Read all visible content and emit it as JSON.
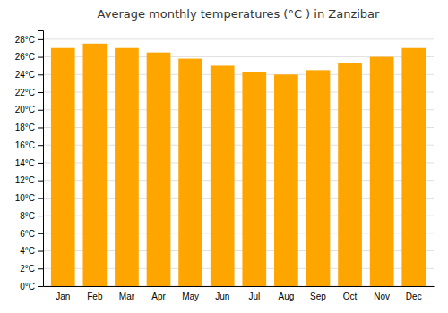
{
  "chart_data": {
    "type": "bar",
    "title": "Average monthly temperatures (°C ) in Zanzibar",
    "categories": [
      "Jan",
      "Feb",
      "Mar",
      "Apr",
      "May",
      "Jun",
      "Jul",
      "Aug",
      "Sep",
      "Oct",
      "Nov",
      "Dec"
    ],
    "values": [
      27.0,
      27.5,
      27.0,
      26.5,
      25.8,
      25.0,
      24.3,
      24.0,
      24.5,
      25.3,
      26.0,
      27.0
    ],
    "color": "#FFA500",
    "ylim": [
      0,
      29
    ],
    "yticks": [
      {
        "value": 0,
        "label": "0°C"
      },
      {
        "value": 2,
        "label": "2°C"
      },
      {
        "value": 4,
        "label": "4°C"
      },
      {
        "value": 6,
        "label": "6°C"
      },
      {
        "value": 8,
        "label": "8°C"
      },
      {
        "value": 10,
        "label": "10°C"
      },
      {
        "value": 12,
        "label": "12°C"
      },
      {
        "value": 14,
        "label": "14°C"
      },
      {
        "value": 16,
        "label": "16°C"
      },
      {
        "value": 18,
        "label": "18°C"
      },
      {
        "value": 20,
        "label": "20°C"
      },
      {
        "value": 22,
        "label": "22°C"
      },
      {
        "value": 24,
        "label": "24°C"
      },
      {
        "value": 26,
        "label": "26°C"
      },
      {
        "value": 28,
        "label": "28°C"
      }
    ],
    "grid": true
  }
}
